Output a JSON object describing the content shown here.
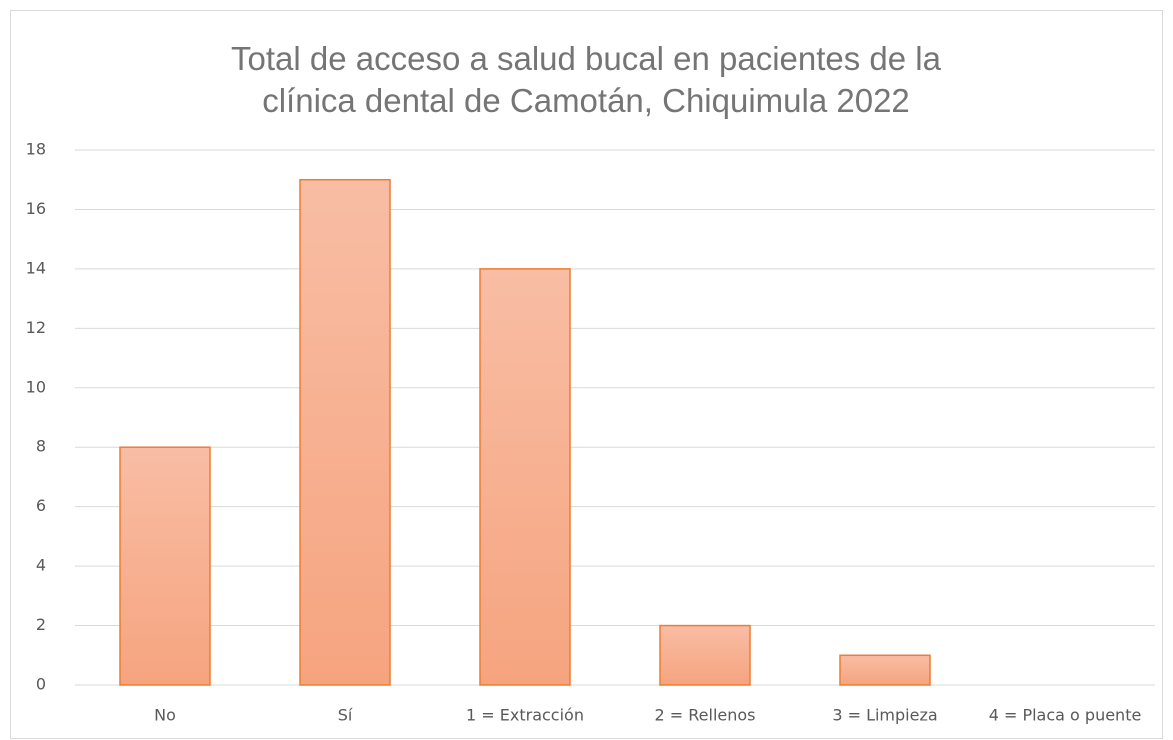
{
  "chart_data": {
    "type": "bar",
    "title": "Total de acceso a salud bucal en pacientes de la clínica dental de Camotán, Chiquimula 2022",
    "categories": [
      "No",
      "Sí",
      "1 = Extracción",
      "2 = Rellenos",
      "3 = Limpieza",
      "4 = Placa o puente"
    ],
    "values": [
      8,
      17,
      14,
      2,
      1,
      0
    ],
    "color": "#ed7d31",
    "ylim": [
      0,
      18
    ],
    "yticks": [
      0,
      2,
      4,
      6,
      8,
      10,
      12,
      14,
      16,
      18
    ],
    "grid": true
  }
}
